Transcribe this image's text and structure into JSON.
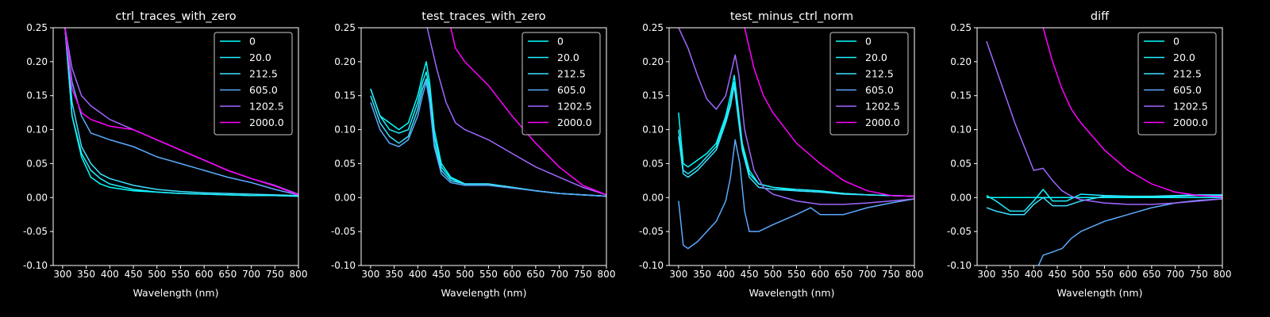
{
  "chart_data": [
    {
      "type": "line",
      "title": "ctrl_traces_with_zero",
      "xlabel": "Wavelength (nm)",
      "ylabel": "",
      "xlim": [
        280,
        800
      ],
      "ylim": [
        -0.1,
        0.25
      ],
      "xticks": [
        300,
        350,
        400,
        450,
        500,
        550,
        600,
        650,
        700,
        750,
        800
      ],
      "yticks": [
        -0.1,
        -0.05,
        0.0,
        0.05,
        0.1,
        0.15,
        0.2,
        0.25
      ],
      "legend_position": "top-right",
      "series": [
        {
          "name": "0",
          "color": "#00ffff",
          "x": [
            305,
            320,
            340,
            360,
            380,
            400,
            450,
            500,
            550,
            600,
            650,
            700,
            750,
            800
          ],
          "y": [
            0.25,
            0.12,
            0.06,
            0.03,
            0.02,
            0.015,
            0.01,
            0.008,
            0.006,
            0.005,
            0.004,
            0.003,
            0.003,
            0.002
          ]
        },
        {
          "name": "20.0",
          "color": "#1ef0ff",
          "x": [
            305,
            320,
            340,
            360,
            380,
            400,
            450,
            500,
            550,
            600,
            650,
            700,
            750,
            800
          ],
          "y": [
            0.25,
            0.12,
            0.065,
            0.04,
            0.028,
            0.02,
            0.012,
            0.008,
            0.006,
            0.005,
            0.004,
            0.003,
            0.003,
            0.002
          ]
        },
        {
          "name": "212.5",
          "color": "#3ce0ff",
          "x": [
            305,
            320,
            340,
            360,
            380,
            400,
            450,
            500,
            550,
            600,
            650,
            700,
            750,
            800
          ],
          "y": [
            0.25,
            0.14,
            0.075,
            0.05,
            0.035,
            0.028,
            0.018,
            0.012,
            0.009,
            0.007,
            0.006,
            0.005,
            0.004,
            0.003
          ]
        },
        {
          "name": "605.0",
          "color": "#5aaaff",
          "x": [
            305,
            320,
            340,
            360,
            380,
            400,
            450,
            500,
            550,
            600,
            650,
            700,
            750,
            800
          ],
          "y": [
            0.25,
            0.17,
            0.12,
            0.095,
            0.09,
            0.085,
            0.075,
            0.06,
            0.05,
            0.04,
            0.03,
            0.022,
            0.012,
            0.004
          ]
        },
        {
          "name": "1202.5",
          "color": "#a066ff",
          "x": [
            305,
            320,
            340,
            360,
            380,
            400,
            450,
            500,
            550,
            600,
            650,
            700,
            750,
            800
          ],
          "y": [
            0.25,
            0.19,
            0.15,
            0.135,
            0.125,
            0.115,
            0.1,
            0.085,
            0.07,
            0.055,
            0.04,
            0.028,
            0.018,
            0.005
          ]
        },
        {
          "name": "2000.0",
          "color": "#ff00ff",
          "x": [
            305,
            320,
            340,
            360,
            380,
            400,
            450,
            500,
            550,
            600,
            650,
            700,
            750,
            800
          ],
          "y": [
            0.25,
            0.16,
            0.125,
            0.115,
            0.11,
            0.105,
            0.1,
            0.085,
            0.07,
            0.055,
            0.04,
            0.028,
            0.017,
            0.004
          ]
        }
      ]
    },
    {
      "type": "line",
      "title": "test_traces_with_zero",
      "xlabel": "Wavelength (nm)",
      "ylabel": "",
      "xlim": [
        280,
        800
      ],
      "ylim": [
        -0.1,
        0.25
      ],
      "xticks": [
        300,
        350,
        400,
        450,
        500,
        550,
        600,
        650,
        700,
        750,
        800
      ],
      "yticks": [
        -0.1,
        -0.05,
        0.0,
        0.05,
        0.1,
        0.15,
        0.2,
        0.25
      ],
      "legend_position": "top-right",
      "series": [
        {
          "name": "0",
          "color": "#00ffff",
          "x": [
            300,
            320,
            340,
            360,
            380,
            400,
            410,
            418,
            425,
            435,
            450,
            470,
            500,
            550,
            600,
            650,
            700,
            750,
            800
          ],
          "y": [
            0.16,
            0.12,
            0.11,
            0.1,
            0.11,
            0.15,
            0.18,
            0.2,
            0.17,
            0.1,
            0.05,
            0.03,
            0.02,
            0.02,
            0.015,
            0.01,
            0.006,
            0.004,
            0.002
          ]
        },
        {
          "name": "20.0",
          "color": "#1ef0ff",
          "x": [
            300,
            320,
            340,
            360,
            380,
            400,
            410,
            418,
            425,
            435,
            450,
            470,
            500,
            550,
            600,
            650,
            700,
            750,
            800
          ],
          "y": [
            0.16,
            0.12,
            0.1,
            0.095,
            0.1,
            0.14,
            0.17,
            0.185,
            0.16,
            0.09,
            0.045,
            0.028,
            0.02,
            0.02,
            0.015,
            0.01,
            0.006,
            0.004,
            0.002
          ]
        },
        {
          "name": "212.5",
          "color": "#3ce0ff",
          "x": [
            300,
            320,
            340,
            360,
            380,
            400,
            410,
            418,
            425,
            435,
            450,
            470,
            500,
            550,
            600,
            650,
            700,
            750,
            800
          ],
          "y": [
            0.15,
            0.11,
            0.09,
            0.08,
            0.09,
            0.13,
            0.16,
            0.175,
            0.15,
            0.08,
            0.04,
            0.025,
            0.02,
            0.02,
            0.015,
            0.01,
            0.006,
            0.004,
            0.002
          ]
        },
        {
          "name": "605.0",
          "color": "#5aaaff",
          "x": [
            300,
            320,
            340,
            360,
            380,
            400,
            410,
            418,
            425,
            435,
            450,
            470,
            500,
            550,
            600,
            650,
            700,
            750,
            800
          ],
          "y": [
            0.14,
            0.1,
            0.08,
            0.075,
            0.085,
            0.12,
            0.15,
            0.17,
            0.14,
            0.075,
            0.035,
            0.022,
            0.018,
            0.018,
            0.014,
            0.01,
            0.006,
            0.004,
            0.002
          ]
        },
        {
          "name": "1202.5",
          "color": "#a066ff",
          "x": [
            420,
            440,
            460,
            480,
            500,
            550,
            600,
            650,
            700,
            750,
            800
          ],
          "y": [
            0.25,
            0.19,
            0.14,
            0.11,
            0.1,
            0.085,
            0.065,
            0.045,
            0.03,
            0.015,
            0.004
          ]
        },
        {
          "name": "2000.0",
          "color": "#ff00ff",
          "x": [
            470,
            480,
            500,
            550,
            600,
            650,
            700,
            750,
            800
          ],
          "y": [
            0.25,
            0.22,
            0.2,
            0.165,
            0.12,
            0.08,
            0.045,
            0.018,
            0.004
          ]
        }
      ]
    },
    {
      "type": "line",
      "title": "test_minus_ctrl_norm",
      "xlabel": "Wavelength (nm)",
      "ylabel": "",
      "xlim": [
        280,
        800
      ],
      "ylim": [
        -0.1,
        0.25
      ],
      "xticks": [
        300,
        350,
        400,
        450,
        500,
        550,
        600,
        650,
        700,
        750,
        800
      ],
      "yticks": [
        -0.1,
        -0.05,
        0.0,
        0.05,
        0.1,
        0.15,
        0.2,
        0.25
      ],
      "legend_position": "top-right",
      "series": [
        {
          "name": "0",
          "color": "#00ffff",
          "x": [
            300,
            310,
            320,
            340,
            360,
            380,
            400,
            410,
            418,
            425,
            435,
            450,
            470,
            500,
            550,
            600,
            650,
            700,
            750,
            800
          ],
          "y": [
            0.125,
            0.05,
            0.045,
            0.055,
            0.065,
            0.08,
            0.12,
            0.15,
            0.18,
            0.14,
            0.08,
            0.04,
            0.02,
            0.015,
            0.01,
            0.008,
            0.006,
            0.004,
            0.003,
            0.002
          ]
        },
        {
          "name": "20.0",
          "color": "#1ef0ff",
          "x": [
            300,
            310,
            320,
            340,
            360,
            380,
            400,
            410,
            418,
            425,
            435,
            450,
            470,
            500,
            550,
            600,
            650,
            700,
            750,
            800
          ],
          "y": [
            0.1,
            0.04,
            0.035,
            0.045,
            0.06,
            0.075,
            0.115,
            0.14,
            0.17,
            0.13,
            0.075,
            0.035,
            0.02,
            0.015,
            0.012,
            0.01,
            0.006,
            0.004,
            0.003,
            0.002
          ]
        },
        {
          "name": "212.5",
          "color": "#3ce0ff",
          "x": [
            300,
            310,
            320,
            340,
            360,
            380,
            400,
            410,
            418,
            425,
            435,
            450,
            470,
            500,
            550,
            600,
            650,
            700,
            750,
            800
          ],
          "y": [
            0.09,
            0.035,
            0.03,
            0.04,
            0.055,
            0.07,
            0.11,
            0.135,
            0.165,
            0.125,
            0.07,
            0.03,
            0.015,
            0.012,
            0.01,
            0.008,
            0.005,
            0.004,
            0.003,
            0.002
          ]
        },
        {
          "name": "605.0",
          "color": "#5aaaff",
          "x": [
            300,
            310,
            320,
            340,
            360,
            380,
            400,
            410,
            420,
            430,
            440,
            450,
            470,
            500,
            550,
            580,
            600,
            650,
            700,
            750,
            800
          ],
          "y": [
            -0.005,
            -0.07,
            -0.075,
            -0.065,
            -0.05,
            -0.035,
            -0.005,
            0.03,
            0.085,
            0.05,
            -0.02,
            -0.05,
            -0.05,
            -0.04,
            -0.025,
            -0.015,
            -0.025,
            -0.025,
            -0.015,
            -0.008,
            -0.002
          ]
        },
        {
          "name": "1202.5",
          "color": "#a066ff",
          "x": [
            300,
            320,
            340,
            360,
            380,
            400,
            410,
            420,
            428,
            440,
            460,
            480,
            500,
            550,
            600,
            650,
            700,
            750,
            800
          ],
          "y": [
            0.25,
            0.22,
            0.18,
            0.145,
            0.13,
            0.15,
            0.18,
            0.21,
            0.18,
            0.1,
            0.04,
            0.015,
            0.005,
            -0.005,
            -0.01,
            -0.01,
            -0.008,
            -0.005,
            -0.002
          ]
        },
        {
          "name": "2000.0",
          "color": "#ff00ff",
          "x": [
            440,
            460,
            480,
            500,
            550,
            600,
            650,
            700,
            750,
            800
          ],
          "y": [
            0.25,
            0.19,
            0.15,
            0.125,
            0.08,
            0.05,
            0.025,
            0.01,
            0.003,
            0.002
          ]
        }
      ]
    },
    {
      "type": "line",
      "title": "diff",
      "xlabel": "Wavelength (nm)",
      "ylabel": "",
      "xlim": [
        280,
        800
      ],
      "ylim": [
        -0.1,
        0.25
      ],
      "xticks": [
        300,
        350,
        400,
        450,
        500,
        550,
        600,
        650,
        700,
        750,
        800
      ],
      "yticks": [
        -0.1,
        -0.05,
        0.0,
        0.05,
        0.1,
        0.15,
        0.2,
        0.25
      ],
      "legend_position": "top-right",
      "series": [
        {
          "name": "0",
          "color": "#00ffff",
          "x": [
            300,
            800
          ],
          "y": [
            0.0,
            0.0
          ]
        },
        {
          "name": "20.0",
          "color": "#1ef0ff",
          "x": [
            300,
            320,
            350,
            380,
            400,
            420,
            440,
            470,
            500,
            550,
            600,
            650,
            700,
            750,
            800
          ],
          "y": [
            0.003,
            -0.005,
            -0.02,
            -0.02,
            -0.005,
            0.012,
            -0.005,
            -0.005,
            0.005,
            0.003,
            0.002,
            0.002,
            0.003,
            0.004,
            0.004
          ]
        },
        {
          "name": "212.5",
          "color": "#3ce0ff",
          "x": [
            300,
            320,
            350,
            380,
            400,
            420,
            440,
            470,
            500,
            550,
            600,
            650,
            700,
            750,
            800
          ],
          "y": [
            -0.015,
            -0.02,
            -0.025,
            -0.025,
            -0.01,
            0.0,
            -0.012,
            -0.012,
            -0.005,
            0.002,
            0.002,
            0.001,
            0.002,
            0.003,
            0.003
          ]
        },
        {
          "name": "605.0",
          "color": "#5aaaff",
          "x": [
            410,
            420,
            440,
            460,
            480,
            500,
            550,
            600,
            650,
            700,
            750,
            800
          ],
          "y": [
            -0.1,
            -0.085,
            -0.08,
            -0.075,
            -0.06,
            -0.05,
            -0.035,
            -0.025,
            -0.015,
            -0.008,
            -0.004,
            -0.002
          ]
        },
        {
          "name": "1202.5",
          "color": "#a066ff",
          "x": [
            300,
            320,
            340,
            360,
            380,
            400,
            420,
            440,
            460,
            480,
            500,
            550,
            600,
            650,
            700,
            750,
            800
          ],
          "y": [
            0.23,
            0.19,
            0.15,
            0.11,
            0.075,
            0.04,
            0.043,
            0.025,
            0.01,
            0.002,
            -0.003,
            -0.008,
            -0.01,
            -0.01,
            -0.008,
            -0.005,
            -0.002
          ]
        },
        {
          "name": "2000.0",
          "color": "#ff00ff",
          "x": [
            420,
            440,
            460,
            480,
            500,
            550,
            600,
            650,
            700,
            750,
            800
          ],
          "y": [
            0.25,
            0.2,
            0.16,
            0.13,
            0.11,
            0.07,
            0.04,
            0.02,
            0.008,
            0.003,
            0.001
          ]
        }
      ]
    }
  ]
}
